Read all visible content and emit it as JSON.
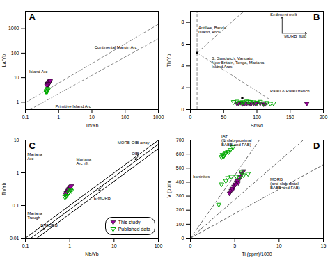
{
  "chart_data": [
    {
      "type": "scatter",
      "title": "A",
      "xlabel": "Th/Yb",
      "ylabel": "La/Yb",
      "log": true,
      "grid": false,
      "xlim": [
        0.1,
        1000
      ],
      "ylim": [
        0.5,
        5000
      ],
      "xticks": [
        0.1,
        1,
        10,
        100,
        1000
      ],
      "yticks": [
        1,
        10,
        100,
        1000
      ],
      "series": [
        {
          "type": "line",
          "color": "#888888",
          "line_style": "dashed",
          "x": [
            0.13868,
            1000
          ],
          "values": [
            0.5,
            391.22
          ]
        },
        {
          "type": "line",
          "color": "#888888",
          "line_style": "dashed",
          "x": [
            0.1,
            1000
          ],
          "values": [
            0.95094,
            1507.13
          ]
        },
        {
          "type": "scatter",
          "color": "#9b009b",
          "marker": "triangle-down",
          "x": [
            0.45,
            0.5,
            0.55,
            0.48,
            0.52,
            0.47,
            0.53,
            0.49,
            0.51,
            0.46,
            0.54,
            0.5,
            0.44,
            0.56
          ],
          "values": [
            5.5,
            6.0,
            7.0,
            5.0,
            6.5,
            5.8,
            6.8,
            5.3,
            6.2,
            5.6,
            7.2,
            5.5,
            4.8,
            7.5
          ]
        },
        {
          "type": "scatter",
          "color": "#00aa00",
          "marker": "triangle-down-open",
          "x": [
            0.42,
            0.46,
            0.44,
            0.48,
            0.43,
            0.45
          ],
          "values": [
            2.8,
            3.5,
            3.0,
            3.2,
            2.5,
            2.7
          ]
        }
      ],
      "annotations": [
        {
          "text": "Island Arc",
          "x": 0.13,
          "y": 15
        },
        {
          "text": "Primitive Island Arc",
          "x": 0.8,
          "y": 0.58
        },
        {
          "text": "Continental Margin Arc",
          "x": 12,
          "y": 150
        }
      ]
    },
    {
      "type": "scatter",
      "title": "B",
      "xlabel": "Sr/Nd",
      "ylabel": "Th/Yb",
      "grid": false,
      "xlim": [
        0,
        200
      ],
      "ylim": [
        0,
        9
      ],
      "xticks": [
        0,
        50,
        100,
        150,
        200
      ],
      "yticks": [
        0,
        2,
        4,
        6,
        8
      ],
      "series": [
        {
          "type": "line",
          "color": "#888888",
          "line_style": "dashed",
          "x": [
            10,
            10
          ],
          "values": [
            0,
            9.0
          ]
        },
        {
          "type": "line",
          "color": "#888888",
          "line_style": "dashed",
          "x": [
            10,
            80
          ],
          "values": [
            5.2,
            9.0
          ]
        },
        {
          "type": "line",
          "color": "#888888",
          "line_style": "dashed",
          "x": [
            10,
            120
          ],
          "values": [
            5.2,
            0.9
          ]
        },
        {
          "type": "arrow",
          "color": "#000000",
          "x": [
            138,
            138
          ],
          "values": [
            7.0,
            8.5
          ]
        },
        {
          "type": "arrow",
          "color": "#000000",
          "x": [
            138,
            175
          ],
          "values": [
            7.0,
            7.0
          ]
        },
        {
          "type": "scatter",
          "color": "#000000",
          "marker": "circle",
          "x": [
            10,
            78
          ],
          "values": [
            5.2,
            1.05
          ]
        },
        {
          "type": "scatter",
          "color": "#9b009b",
          "marker": "triangle-down",
          "x": [
            70,
            80,
            90,
            100,
            110,
            75,
            85,
            95,
            105,
            78,
            88,
            98,
            72,
            82,
            92,
            112
          ],
          "values": [
            0.55,
            0.6,
            0.55,
            0.6,
            0.5,
            0.65,
            0.58,
            0.55,
            0.57,
            0.52,
            0.57,
            0.55,
            0.6,
            0.58,
            0.6,
            0.48
          ]
        },
        {
          "type": "scatter",
          "color": "#00aa00",
          "marker": "triangle-down-open",
          "x": [
            65,
            75,
            85,
            95,
            105,
            115,
            125,
            70,
            80,
            90,
            100,
            110,
            120,
            88,
            78
          ],
          "values": [
            0.7,
            0.65,
            0.75,
            0.68,
            0.72,
            0.62,
            0.58,
            0.74,
            0.67,
            0.7,
            0.65,
            0.6,
            0.55,
            0.72,
            0.68
          ]
        },
        {
          "type": "scatter",
          "color": "#9b009b",
          "marker": "triangle-down",
          "x": [
            175
          ],
          "values": [
            0.55
          ]
        }
      ],
      "annotations": [
        {
          "text": "Sediment melt",
          "x": 120,
          "y": 8.6
        },
        {
          "text": "'MORB' fluid",
          "x": 140,
          "y": 6.6
        },
        {
          "text": "Antilles, Banda\nIsland, Arcs",
          "x": 12,
          "y": 7.0
        },
        {
          "text": "S. Sandwich, Vanuatu,\nNew Britain, Tonga, Mariana\nIsland Arcs",
          "x": 32,
          "y": 3.8
        },
        {
          "text": "Palau & Palau trench",
          "x": 120,
          "y": 1.55
        }
      ]
    },
    {
      "type": "scatter",
      "title": "C",
      "xlabel": "Nb/Yb",
      "ylabel": "Th/Yb",
      "log": true,
      "grid": false,
      "legend": "lower right",
      "xlim": [
        0.1,
        100
      ],
      "ylim": [
        0.01,
        10
      ],
      "xticks": [
        0.1,
        1,
        10,
        100
      ],
      "yticks": [
        0.01,
        0.1,
        1,
        10
      ],
      "series": [
        {
          "type": "line",
          "color": "#000000",
          "line_style": "solid",
          "x": [
            0.1,
            100
          ],
          "values": [
            0.01,
            10
          ]
        },
        {
          "type": "line",
          "color": "#000000",
          "line_style": "solid",
          "x": [
            0.13333,
            100
          ],
          "values": [
            0.01,
            7.5
          ]
        },
        {
          "type": "line",
          "color": "#000000",
          "line_style": "solid",
          "x": [
            0.18182,
            100
          ],
          "values": [
            0.01,
            5.5
          ]
        },
        {
          "type": "arrow",
          "color": "#000000",
          "x": [
            0.32,
            0.25
          ],
          "values": [
            0.025,
            0.018
          ]
        },
        {
          "type": "arrow",
          "color": "#000000",
          "x": [
            5.5,
            4.5
          ],
          "values": [
            0.38,
            0.28
          ]
        },
        {
          "type": "arrow",
          "color": "#000000",
          "x": [
            35,
            30
          ],
          "values": [
            3.2,
            2.5
          ]
        },
        {
          "name": "This study",
          "type": "scatter",
          "color": "#9b009b",
          "marker": "triangle-down",
          "x": [
            0.85,
            0.95,
            1.05,
            0.9,
            1.0,
            0.8,
            1.1,
            0.88,
            0.98,
            0.83,
            0.93,
            1.03
          ],
          "values": [
            0.25,
            0.32,
            0.38,
            0.28,
            0.35,
            0.22,
            0.4,
            0.27,
            0.33,
            0.24,
            0.3,
            0.36
          ]
        },
        {
          "name": "Published data",
          "type": "scatter",
          "color": "#00aa00",
          "marker": "triangle-down-open",
          "x": [
            0.85,
            0.95,
            1.05,
            0.9,
            1.0,
            0.82,
            0.78,
            1.08
          ],
          "values": [
            0.2,
            0.25,
            0.3,
            0.22,
            0.27,
            0.19,
            0.18,
            0.28
          ]
        }
      ],
      "annotations": [
        {
          "text": "Mariana\nArc",
          "x": 0.11,
          "y": 2.5
        },
        {
          "text": "Mariana\nArc rift",
          "x": 1.4,
          "y": 1.8
        },
        {
          "text": "Mariana\nTrough",
          "x": 0.11,
          "y": 0.038
        },
        {
          "text": "N-MORB",
          "x": 0.22,
          "y": 0.022
        },
        {
          "text": "E-MORB",
          "x": 3.5,
          "y": 0.15
        },
        {
          "text": "OIB",
          "x": 25,
          "y": 3.5
        },
        {
          "text": "MORB-OIB array",
          "x": 12,
          "y": 7.5
        }
      ]
    },
    {
      "type": "scatter",
      "title": "D",
      "xlabel": "Ti (ppm)/1000",
      "ylabel": "V (ppm)",
      "grid": false,
      "xlim": [
        0,
        15
      ],
      "ylim": [
        0,
        700
      ],
      "xticks": [
        0,
        5,
        10,
        15
      ],
      "yticks": [
        0,
        100,
        200,
        300,
        400,
        500,
        600,
        700
      ],
      "series": [
        {
          "type": "line",
          "color": "#666666",
          "line_style": "dashed",
          "x": [
            0,
            15
          ],
          "values": [
            0,
            525
          ]
        },
        {
          "type": "line",
          "color": "#666666",
          "line_style": "dashed",
          "x": [
            0,
            12.72727
          ],
          "values": [
            0,
            700
          ]
        },
        {
          "type": "line",
          "color": "#666666",
          "line_style": "dashed",
          "x": [
            0,
            7.777778
          ],
          "values": [
            0,
            700
          ]
        },
        {
          "type": "scatter",
          "color": "#9b009b",
          "marker": "triangle-down",
          "x": [
            4.5,
            5.0,
            5.5,
            4.8,
            5.2,
            4.6,
            5.8,
            4.9,
            5.3,
            4.7,
            5.4,
            6.0,
            5.6,
            5.1,
            4.4
          ],
          "values": [
            330,
            380,
            420,
            350,
            400,
            340,
            460,
            370,
            410,
            355,
            395,
            480,
            440,
            385,
            320
          ]
        },
        {
          "type": "scatter",
          "color": "#00aa00",
          "marker": "triangle-down-open",
          "x": [
            3.5,
            4.0,
            4.5,
            3.8,
            4.2,
            3.6,
            4.8,
            3.9,
            4.3,
            3.7,
            5.5,
            6.0,
            5.2,
            6.5,
            3.2,
            4.0,
            3.5,
            4.2,
            5.8,
            4.6
          ],
          "values": [
            580,
            610,
            630,
            590,
            620,
            595,
            650,
            600,
            615,
            585,
            430,
            450,
            440,
            460,
            240,
            410,
            385,
            430,
            470,
            440
          ]
        }
      ],
      "annotations": [
        {
          "text": "IAT\n(& slab-proximal\nBABB and FAB)",
          "x": 3.5,
          "y": 660
        },
        {
          "text": "boninites",
          "x": 0.3,
          "y": 430
        },
        {
          "text": "MORB\n(and slab-distal\nBABB and FAB)",
          "x": 9.0,
          "y": 350
        }
      ]
    }
  ]
}
